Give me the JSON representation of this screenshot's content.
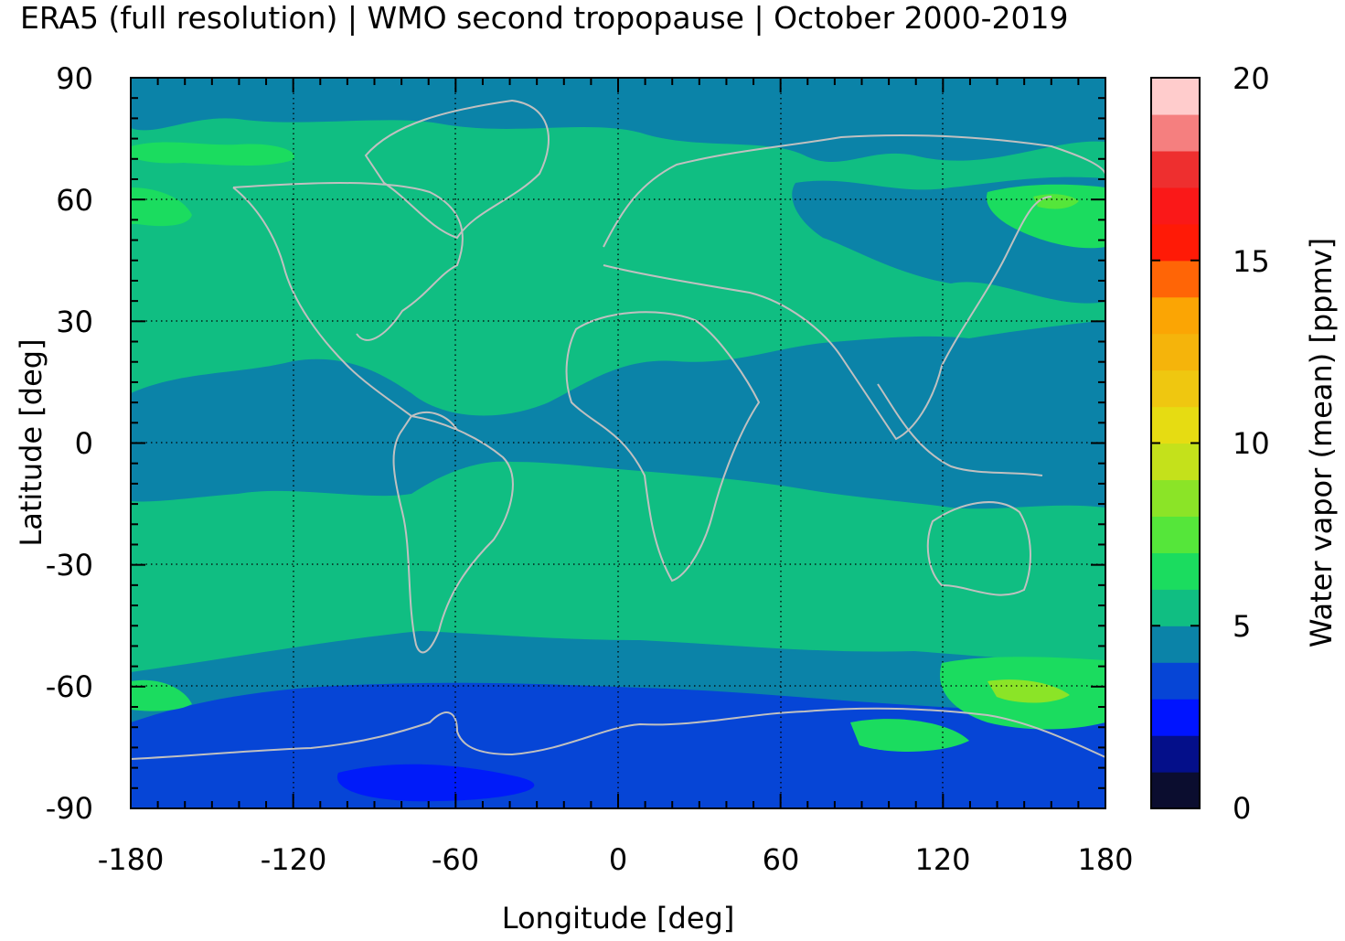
{
  "title": "ERA5 (full resolution) | WMO second tropopause | October 2000-2019",
  "map": {
    "x_axis": {
      "label": "Longitude [deg]",
      "range": [
        -180,
        180
      ],
      "ticks": [
        "-180",
        "-120",
        "-60",
        "0",
        "60",
        "120",
        "180"
      ]
    },
    "y_axis": {
      "label": "Latitude [deg]",
      "range": [
        -90,
        90
      ],
      "ticks": [
        "90",
        "60",
        "30",
        "0",
        "-30",
        "-60",
        "-90"
      ]
    },
    "grid": "dotted",
    "coastlines_color": "#c0c0c0"
  },
  "colorbar": {
    "label": "Water vapor (mean) [ppmv]",
    "range": [
      0,
      20
    ],
    "ticks": [
      "20",
      "15",
      "10",
      "5",
      "0"
    ],
    "colors": [
      "#0b0d2f",
      "#040f8a",
      "#0014ff",
      "#0645d6",
      "#0b83a8",
      "#10be82",
      "#1bdc5f",
      "#55e63a",
      "#8be427",
      "#c4e11b",
      "#e6dc12",
      "#efc710",
      "#f5b40b",
      "#fba504",
      "#ff6506",
      "#ff1a06",
      "#fa1818",
      "#ee2f2f",
      "#f57f7f",
      "#ffcccc"
    ]
  },
  "chart_data": {
    "type": "heatmap",
    "title": "ERA5 (full resolution) | WMO second tropopause | October 2000-2019",
    "xlabel": "Longitude [deg]",
    "ylabel": "Latitude [deg]",
    "xlim": [
      -180,
      180
    ],
    "ylim": [
      -90,
      90
    ],
    "colorbar_label": "Water vapor (mean) [ppmv]",
    "clim": [
      0,
      20
    ],
    "zonal_bands_ppmv": [
      {
        "lat": [
          75,
          90
        ],
        "value": 4.5
      },
      {
        "lat": [
          40,
          75
        ],
        "value": 5.5
      },
      {
        "lat": [
          15,
          40
        ],
        "value": 5.5
      },
      {
        "lat": [
          -15,
          15
        ],
        "value": 4.5
      },
      {
        "lat": [
          -50,
          -15
        ],
        "value": 5.5
      },
      {
        "lat": [
          -60,
          -50
        ],
        "value": 4.5
      },
      {
        "lat": [
          -90,
          -60
        ],
        "value": 3.5
      }
    ]
  }
}
